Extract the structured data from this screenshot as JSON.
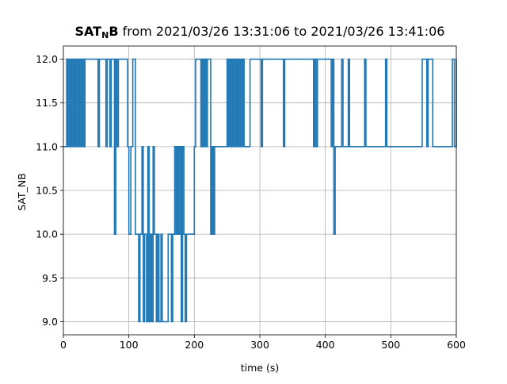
{
  "chart_data": {
    "type": "line",
    "title_main": "SAT",
    "title_sub": "N",
    "title_bold_tail": "B",
    "title_rest": " from 2021/03/26 13:31:06 to 2021/03/26 13:41:06",
    "xlabel": "time (s)",
    "ylabel": "SAT_NB",
    "xlim": [
      0,
      600
    ],
    "ylim": [
      8.85,
      12.15
    ],
    "x_ticks": [
      0,
      100,
      200,
      300,
      400,
      500,
      600
    ],
    "x_tick_labels": [
      "0",
      "100",
      "200",
      "300",
      "400",
      "500",
      "600"
    ],
    "y_ticks": [
      9.0,
      9.5,
      10.0,
      10.5,
      11.0,
      11.5,
      12.0
    ],
    "y_tick_labels": [
      "9.0",
      "9.5",
      "10.0",
      "10.5",
      "11.0",
      "11.5",
      "12.0"
    ],
    "grid": true,
    "line_color": "#1f77b4",
    "step": true,
    "x": [
      0,
      5,
      7,
      9,
      11,
      13,
      15,
      17,
      19,
      21,
      23,
      25,
      27,
      29,
      31,
      33,
      53,
      55,
      65,
      67,
      71,
      73,
      78,
      80,
      82,
      84,
      98,
      100,
      103,
      106,
      110,
      115,
      117,
      120,
      122,
      124,
      127,
      129,
      131,
      133,
      135,
      137,
      139,
      142,
      144,
      146,
      149,
      151,
      160,
      165,
      167,
      170,
      172,
      174,
      176,
      178,
      180,
      182,
      184,
      186,
      188,
      200,
      202,
      210,
      212,
      214,
      216,
      218,
      220,
      225,
      227,
      229,
      231,
      250,
      252,
      254,
      256,
      258,
      260,
      262,
      264,
      266,
      268,
      270,
      272,
      274,
      276,
      285,
      302,
      304,
      336,
      338,
      382,
      384,
      386,
      388,
      409,
      411,
      413,
      415,
      425,
      427,
      435,
      437,
      460,
      462,
      492,
      494,
      548,
      555,
      557,
      564,
      594,
      597,
      600
    ],
    "y": [
      11,
      12,
      11,
      12,
      11,
      12,
      11,
      12,
      11,
      12,
      11,
      12,
      11,
      12,
      11,
      12,
      11,
      12,
      11,
      12,
      11,
      12,
      10,
      12,
      11,
      12,
      11,
      10,
      11,
      12,
      10,
      9,
      10,
      11,
      9,
      10,
      9,
      11,
      9,
      10,
      9,
      11,
      10,
      9,
      10,
      9,
      10,
      9,
      10,
      9,
      10,
      11,
      10,
      11,
      10,
      11,
      9,
      11,
      10,
      9,
      10,
      11,
      12,
      11,
      12,
      11,
      12,
      11,
      12,
      10,
      11,
      10,
      11,
      12,
      11,
      12,
      11,
      12,
      11,
      12,
      11,
      12,
      11,
      12,
      11,
      12,
      11,
      12,
      11,
      12,
      11,
      12,
      11,
      12,
      11,
      12,
      11,
      12,
      10,
      11,
      12,
      11,
      12,
      11,
      12,
      11,
      12,
      11,
      12,
      11,
      12,
      11,
      12,
      11,
      12
    ]
  }
}
